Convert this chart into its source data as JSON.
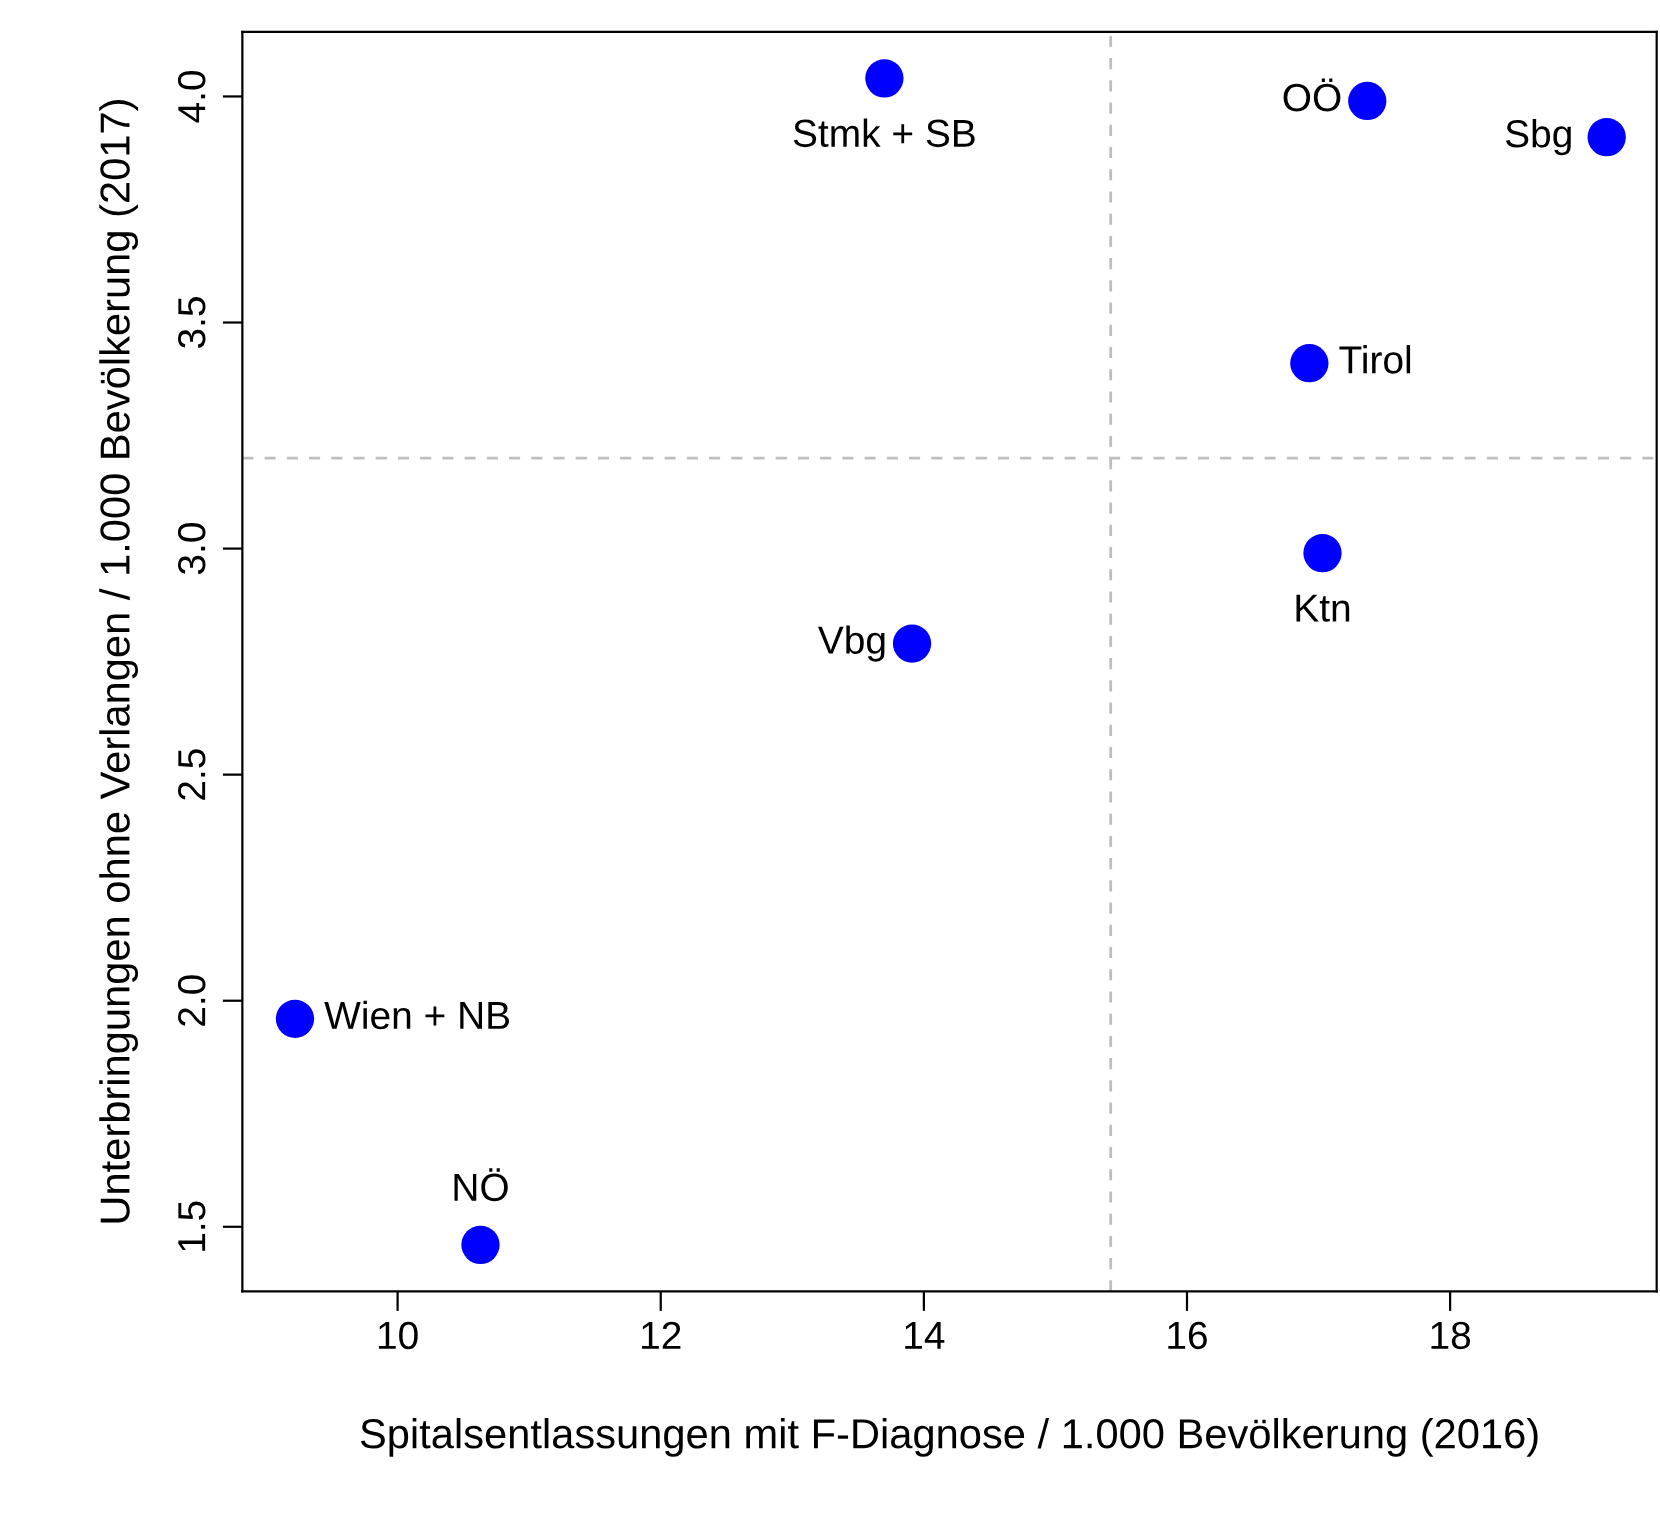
{
  "chart_data": {
    "type": "scatter",
    "xlabel": "Spitalsentlassungen mit F-Diagnose / 1.000 Bevölkerung (2016)",
    "ylabel": "Unterbringungen ohne Verlangen / 1.000 Bevölkerung (2017)",
    "x": [
      13.7,
      17.37,
      19.19,
      16.93,
      17.03,
      13.91,
      9.22,
      10.63
    ],
    "series": [
      {
        "color": "#0000ff",
        "values": [
          4.04,
          3.99,
          3.91,
          3.41,
          2.99,
          2.79,
          1.96,
          1.46
        ]
      }
    ],
    "annotations": [
      {
        "text": "Stmk + SB",
        "x": 13.7,
        "y": 4.04
      },
      {
        "text": "OÖ",
        "x": 17.37,
        "y": 3.99
      },
      {
        "text": "Sbg",
        "x": 19.19,
        "y": 3.91
      },
      {
        "text": "Tirol",
        "x": 16.93,
        "y": 3.41
      },
      {
        "text": "Ktn",
        "x": 17.03,
        "y": 2.99
      },
      {
        "text": "Vbg",
        "x": 13.91,
        "y": 2.79
      },
      {
        "text": "Wien + NB",
        "x": 9.22,
        "y": 1.96
      },
      {
        "text": "NÖ",
        "x": 10.63,
        "y": 1.46
      }
    ],
    "xlim": [
      8.82,
      19.57
    ],
    "ylim": [
      1.357,
      4.143
    ],
    "xticks": [
      10,
      12,
      14,
      16,
      18
    ],
    "yticks": [
      {
        "value": 1.5,
        "label": "1.5"
      },
      {
        "value": 2.0,
        "label": "2.0"
      },
      {
        "value": 2.5,
        "label": "2.5"
      },
      {
        "value": 3.0,
        "label": "3.0"
      },
      {
        "value": 3.5,
        "label": "3.5"
      },
      {
        "value": 4.0,
        "label": "4.0"
      }
    ],
    "ref_lines": [
      {
        "axis": "x",
        "value": 15.42,
        "color": "#bebebe",
        "line_style": "dashed"
      },
      {
        "axis": "y",
        "value": 3.2,
        "color": "#bebebe",
        "line_style": "dashed"
      }
    ],
    "marker": "circle",
    "grid": false,
    "legend": false
  }
}
